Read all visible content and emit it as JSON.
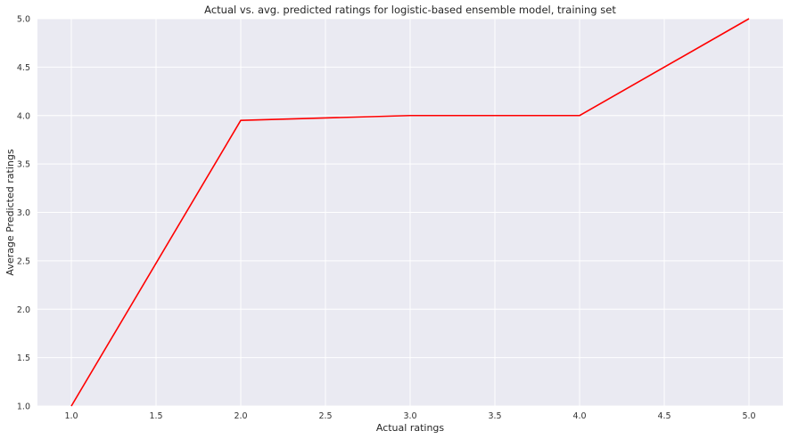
{
  "chart_data": {
    "type": "line",
    "title": "Actual vs. avg. predicted ratings for logistic-based ensemble model, training set",
    "xlabel": "Actual ratings",
    "ylabel": "Average Predicted ratings",
    "x": [
      1.0,
      2.0,
      3.0,
      4.0,
      5.0
    ],
    "series": [
      {
        "values": [
          1.0,
          3.95,
          4.0,
          4.0,
          5.0
        ],
        "color": "#ff0000"
      }
    ],
    "xlim": [
      0.8,
      5.2
    ],
    "ylim": [
      1.0,
      5.0
    ],
    "x_ticks": [
      "1.0",
      "1.5",
      "2.0",
      "2.5",
      "3.0",
      "3.5",
      "4.0",
      "4.5",
      "5.0"
    ],
    "y_ticks": [
      "1.0",
      "1.5",
      "2.0",
      "2.5",
      "3.0",
      "3.5",
      "4.0",
      "4.5",
      "5.0"
    ],
    "grid": true,
    "background_color": "#eaeaf2",
    "grid_color": "#ffffff"
  }
}
